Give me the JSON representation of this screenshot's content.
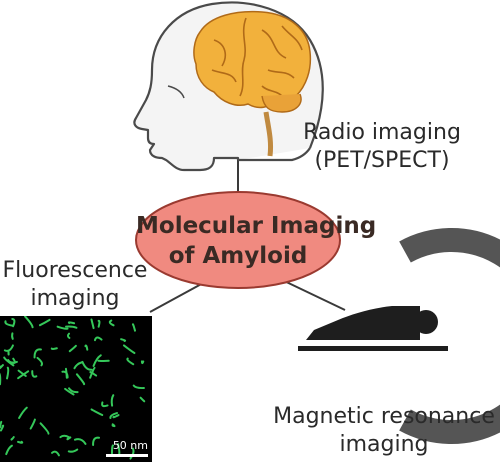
{
  "center": {
    "line1": "Molecular Imaging",
    "line2": "of Amyloid",
    "fill_color": "#f08a80"
  },
  "radio": {
    "line1": "Radio imaging",
    "line2": "(PET/SPECT)"
  },
  "fluorescence": {
    "line1": "Fluorescence",
    "line2": "imaging",
    "scale_bar": "50 nm",
    "fibril_color": "#35c85a"
  },
  "mri": {
    "line1": "Magnetic resonance",
    "line2": "imaging"
  },
  "icons": [
    "head-with-brain-icon",
    "mri-scanner-icon",
    "fluorescence-micrograph"
  ]
}
